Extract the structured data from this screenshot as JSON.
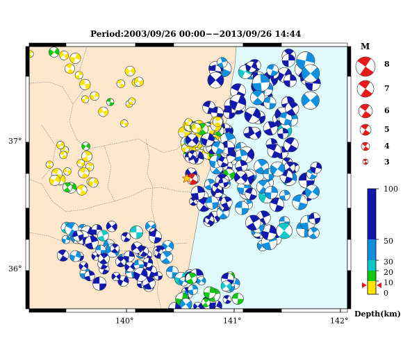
{
  "title": "Period:2003/09/26 00:00−−2013/09/26 14:44",
  "axes": {
    "lon_ticks": [
      "140°",
      "141°",
      "142°"
    ],
    "lat_ticks": [
      "37°",
      "36°"
    ]
  },
  "legend_magnitude": {
    "title": "M",
    "labels": [
      "8",
      "7",
      "6",
      "5",
      "4",
      "3"
    ]
  },
  "legend_depth": {
    "title": "Depth(km)",
    "labels": [
      "100",
      "50",
      "30",
      "20",
      "10",
      "0"
    ],
    "colors": [
      "#1018b0",
      "#1090e0",
      "#10c8c8",
      "#10c810",
      "#ffe400"
    ]
  },
  "colors": {
    "land": "#fde7cd",
    "sea": "#e0fafe",
    "main_shock": "#e51a1a"
  }
}
